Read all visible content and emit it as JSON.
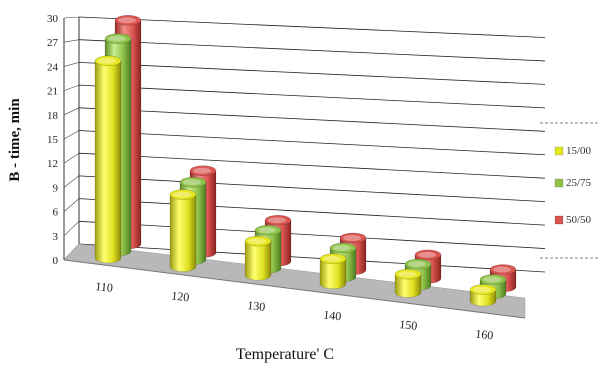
{
  "chart_data": {
    "type": "bar",
    "subtype": "3d-cylinder",
    "title": "",
    "xlabel": "Temperature' C",
    "ylabel": "B - time, min",
    "categories": [
      "110",
      "120",
      "130",
      "140",
      "150",
      "160"
    ],
    "yticks": [
      "0",
      "3",
      "6",
      "9",
      "12",
      "15",
      "18",
      "21",
      "24",
      "27",
      "30"
    ],
    "ylim": [
      0,
      30
    ],
    "grid": true,
    "legend_position": "right",
    "series": [
      {
        "name": "15/00",
        "color": "#e6e61e",
        "values": [
          26,
          9.5,
          4.5,
          3.3,
          2.4,
          1.5
        ]
      },
      {
        "name": "25/75",
        "color": "#8fc24a",
        "values": [
          28,
          10.2,
          5.0,
          3.8,
          2.8,
          1.9
        ]
      },
      {
        "name": "50/50",
        "color": "#d9534f",
        "values": [
          29.5,
          10.8,
          5.4,
          4.2,
          3.1,
          2.3
        ]
      }
    ]
  }
}
